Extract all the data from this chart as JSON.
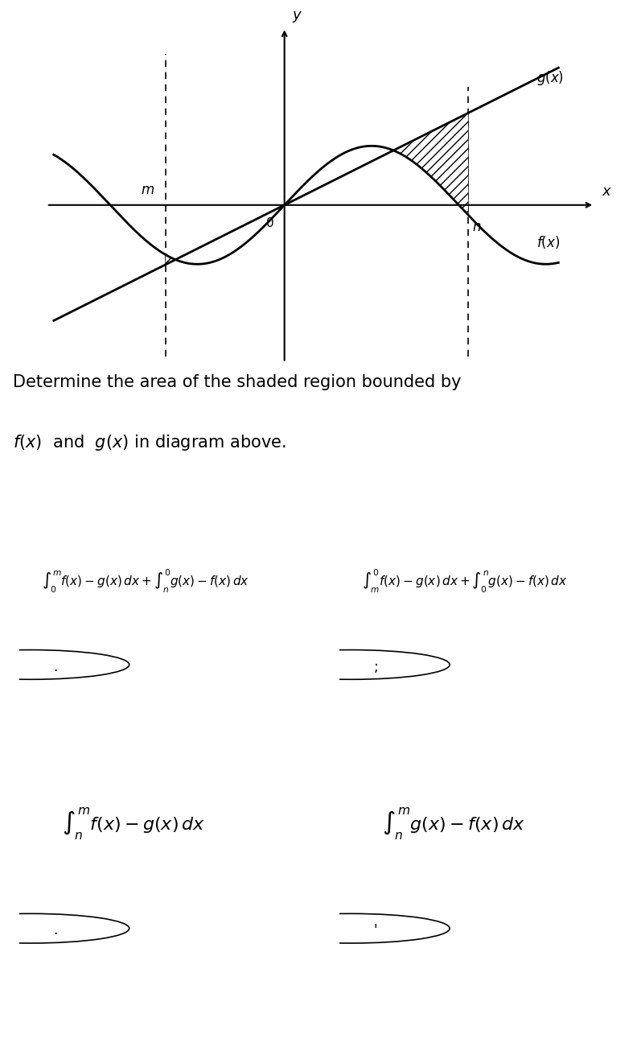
{
  "bg_color": "#ffffff",
  "title_text": "Determine the area of the shaded region bounded by",
  "title_text2": "$f(x)$  and  $g(x)$ in diagram above.",
  "option_A": "$\\int_{0}^{m} f(x)-g(x)\\,dx + \\int_{n}^{0} g(x)-f(x)\\,dx$",
  "option_B": "$\\int_{m}^{0} f(x)-g(x)\\,dx + \\int_{0}^{n} g(x)-f(x)\\,dx$",
  "option_C": "$\\int_{n}^{m} f(x)-g(x)\\,dx$",
  "option_D": "$\\int_{n}^{m} g(x)-f(x)\\,dx$",
  "label_A": ".",
  "label_B": ";",
  "label_C": ".",
  "label_D": "'"
}
